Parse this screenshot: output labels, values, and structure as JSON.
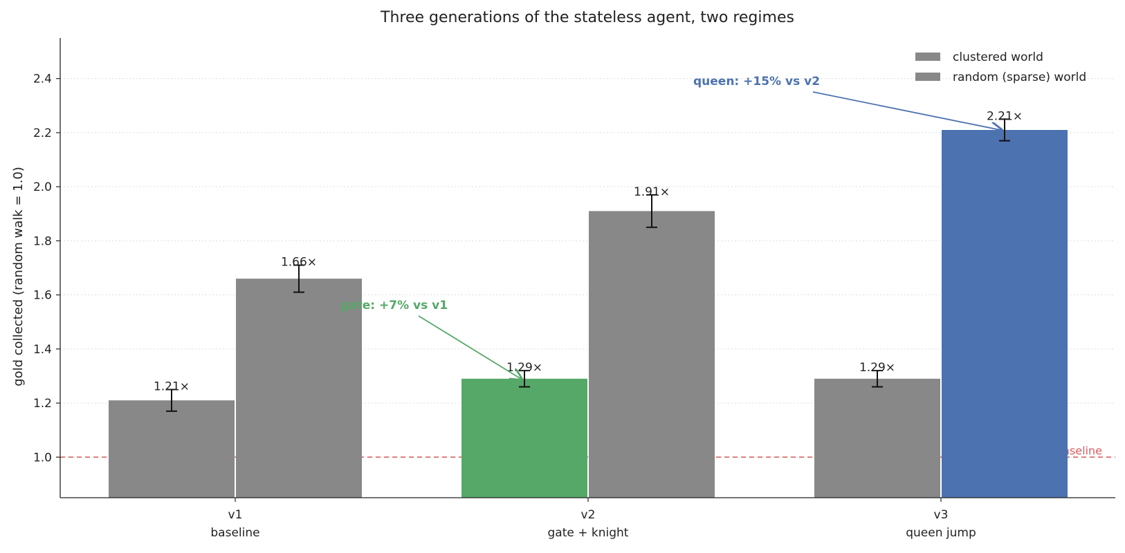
{
  "chart_data": {
    "type": "bar",
    "title": "Three generations of the stateless agent, two regimes",
    "ylabel": "gold collected  (random walk = 1.0)",
    "xlabel": "",
    "ylim": [
      0.85,
      2.55
    ],
    "yticks": [
      1.0,
      1.2,
      1.4,
      1.6,
      1.8,
      2.0,
      2.2,
      2.4
    ],
    "grid": "horizontal dotted",
    "legend_placement": "top-right",
    "categories": [
      {
        "name": "v1",
        "sub": "baseline"
      },
      {
        "name": "v2",
        "sub": "gate + knight"
      },
      {
        "name": "v3",
        "sub": "queen jump"
      }
    ],
    "series": [
      {
        "name": "clustered world",
        "values": [
          1.21,
          1.29,
          1.29
        ],
        "errors": [
          0.04,
          0.03,
          0.03
        ],
        "labels": [
          "1.21×",
          "1.29×",
          "1.29×"
        ],
        "colors": [
          "#888888",
          "#55a868",
          "#888888"
        ]
      },
      {
        "name": "random (sparse) world",
        "values": [
          1.66,
          1.91,
          2.21
        ],
        "errors": [
          0.05,
          0.06,
          0.04
        ],
        "labels": [
          "1.66×",
          "1.91×",
          "2.21×"
        ],
        "colors": [
          "#888888",
          "#888888",
          "#4c72b0"
        ]
      }
    ],
    "reference_line": {
      "value": 1.0,
      "label": "random baseline",
      "color": "#d65f5f"
    },
    "annotations": [
      {
        "text": "gate: +7% vs v1",
        "color": "#55a868",
        "target_category": 1,
        "target_series": 0
      },
      {
        "text": "queen: +15% vs v2",
        "color": "#4c72b0",
        "target_category": 2,
        "target_series": 1
      }
    ],
    "colors": {
      "default_bar": "#888888",
      "text": "#222222"
    }
  }
}
